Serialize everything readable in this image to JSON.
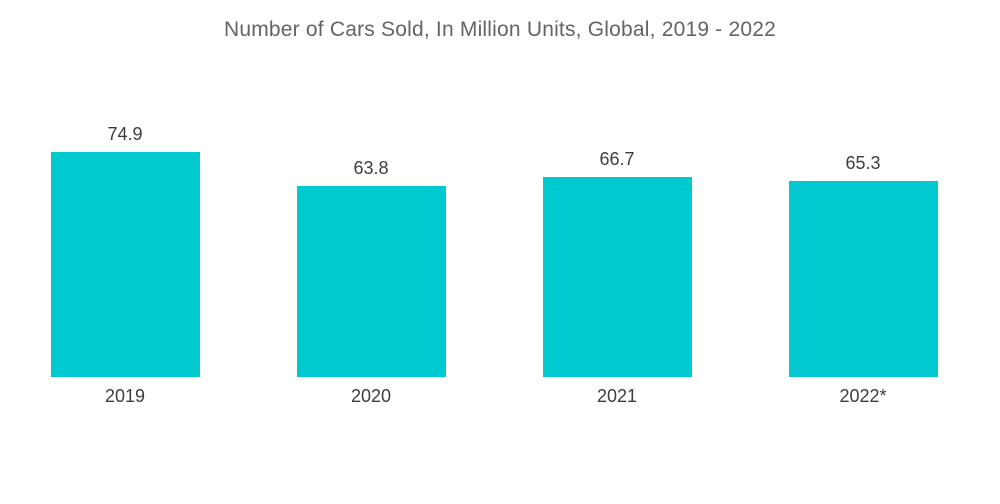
{
  "chart_data": {
    "type": "bar",
    "title": "Number of Cars Sold, In Million Units, Global, 2019 - 2022",
    "categories": [
      "2019",
      "2020",
      "2021",
      "2022*"
    ],
    "values": [
      74.9,
      63.8,
      66.7,
      65.3
    ],
    "xlabel": "",
    "ylabel": "",
    "ylim": [
      0,
      125
    ],
    "grid": false,
    "axes_visible": false,
    "legend": "none",
    "data_labels_position": "above-bar",
    "bar_color": "#00C9CF",
    "label_color": "#3d3d3d",
    "title_color": "#646464"
  }
}
